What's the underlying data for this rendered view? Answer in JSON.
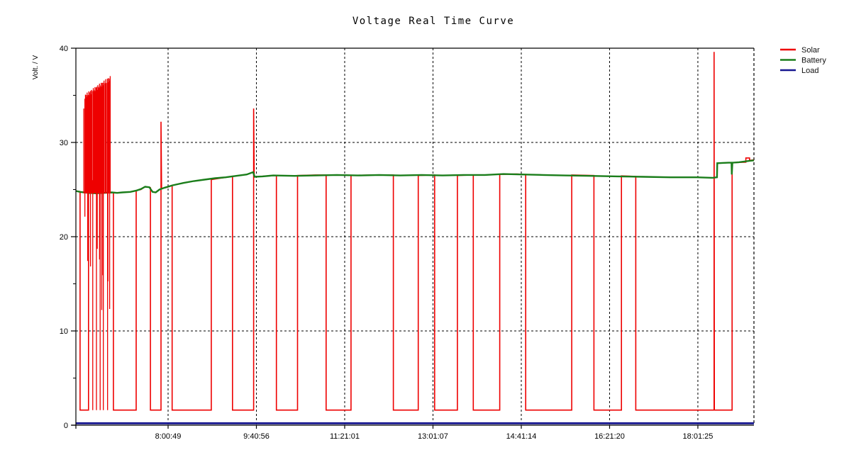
{
  "title": "Voltage Real Time Curve",
  "y_axis": {
    "label": "Volt. / V",
    "tick_labels": [
      "0",
      "10",
      "20",
      "30",
      "40"
    ],
    "tick_values": [
      0,
      10,
      20,
      30,
      40
    ],
    "minor_tick_values": [
      5,
      15,
      25,
      35
    ]
  },
  "x_axis": {
    "tick_labels": [
      "8:00:49",
      "9:40:56",
      "11:21:01",
      "13:01:07",
      "14:41:14",
      "16:21:20",
      "18:01:25"
    ],
    "tick_hours": [
      8.0136,
      9.6822,
      11.3503,
      13.0186,
      14.6872,
      16.3556,
      18.0236
    ]
  },
  "legend": {
    "items": [
      {
        "label": "Solar",
        "color": "#ee0000"
      },
      {
        "label": "Battery",
        "color": "#1a7d1a"
      },
      {
        "label": "Load",
        "color": "#16168f"
      }
    ]
  },
  "chart_data": {
    "type": "line",
    "title": "Voltage Real Time Curve",
    "xlabel": "",
    "ylabel": "Volt. / V",
    "ylim": [
      0,
      40
    ],
    "xlim_hours": [
      6.2715,
      19.083
    ],
    "grid": "dashed",
    "legend_position": "top-right-outside",
    "x_tick_hours": [
      8.0136,
      9.6822,
      11.3503,
      13.0186,
      14.6872,
      16.3556,
      18.0236
    ],
    "x_tick_labels": [
      "8:00:49",
      "9:40:56",
      "11:21:01",
      "13:01:07",
      "14:41:14",
      "16:21:20",
      "18:01:25"
    ],
    "series": [
      {
        "name": "Solar",
        "color": "#ee0000",
        "width": 1.6,
        "points": [
          [
            6.2715,
            24.85
          ],
          [
            6.35,
            24.8
          ],
          [
            6.35,
            1.6
          ],
          [
            6.51,
            1.6
          ],
          [
            6.51,
            24.6
          ],
          [
            6.93,
            24.65
          ],
          [
            6.98,
            24.7
          ],
          [
            6.98,
            1.6
          ],
          [
            7.41,
            1.6
          ],
          [
            7.41,
            24.9
          ],
          [
            7.5,
            25.0
          ],
          [
            7.58,
            25.3
          ],
          [
            7.65,
            25.25
          ],
          [
            7.68,
            25.2
          ],
          [
            7.68,
            1.6
          ],
          [
            7.88,
            1.6
          ],
          [
            7.88,
            32.2
          ],
          [
            7.89,
            25.1
          ],
          [
            8.0,
            25.25
          ],
          [
            8.09,
            25.45
          ],
          [
            8.09,
            1.6
          ],
          [
            8.83,
            1.6
          ],
          [
            8.83,
            26.05
          ],
          [
            9.0,
            26.2
          ],
          [
            9.23,
            26.4
          ],
          [
            9.23,
            1.6
          ],
          [
            9.63,
            1.6
          ],
          [
            9.63,
            33.6
          ],
          [
            9.64,
            26.35
          ],
          [
            9.9,
            26.45
          ],
          [
            10.06,
            26.5
          ],
          [
            10.06,
            1.6
          ],
          [
            10.46,
            1.6
          ],
          [
            10.46,
            26.5
          ],
          [
            10.8,
            26.55
          ],
          [
            11.0,
            26.55
          ],
          [
            11.0,
            1.6
          ],
          [
            11.47,
            1.6
          ],
          [
            11.47,
            26.5
          ],
          [
            11.9,
            26.55
          ],
          [
            12.27,
            26.55
          ],
          [
            12.27,
            1.6
          ],
          [
            12.74,
            1.6
          ],
          [
            12.74,
            26.5
          ],
          [
            13.05,
            26.55
          ],
          [
            13.05,
            1.6
          ],
          [
            13.48,
            1.6
          ],
          [
            13.48,
            26.5
          ],
          [
            13.78,
            26.55
          ],
          [
            13.78,
            1.6
          ],
          [
            14.28,
            1.6
          ],
          [
            14.28,
            26.6
          ],
          [
            14.6,
            26.65
          ],
          [
            14.77,
            26.6
          ],
          [
            14.77,
            1.6
          ],
          [
            15.64,
            1.6
          ],
          [
            15.64,
            26.55
          ],
          [
            16.06,
            26.5
          ],
          [
            16.06,
            1.6
          ],
          [
            16.58,
            1.6
          ],
          [
            16.58,
            26.45
          ],
          [
            16.85,
            26.4
          ],
          [
            16.85,
            1.6
          ],
          [
            18.33,
            1.6
          ],
          [
            18.33,
            39.6
          ],
          [
            18.335,
            1.6
          ],
          [
            18.67,
            1.6
          ],
          [
            18.67,
            27.85
          ],
          [
            18.93,
            27.9
          ],
          [
            18.93,
            28.35
          ],
          [
            19.0,
            28.35
          ],
          [
            19.0,
            28.1
          ],
          [
            19.083,
            28.15
          ]
        ]
      },
      {
        "name": "Battery",
        "color": "#1a7d1a",
        "width": 2.4,
        "points": [
          [
            6.2715,
            24.85
          ],
          [
            6.35,
            24.75
          ],
          [
            6.5,
            24.65
          ],
          [
            6.65,
            24.6
          ],
          [
            6.8,
            24.65
          ],
          [
            6.95,
            24.7
          ],
          [
            7.05,
            24.65
          ],
          [
            7.15,
            24.7
          ],
          [
            7.3,
            24.75
          ],
          [
            7.42,
            24.9
          ],
          [
            7.5,
            25.05
          ],
          [
            7.58,
            25.3
          ],
          [
            7.66,
            25.25
          ],
          [
            7.72,
            24.75
          ],
          [
            7.78,
            24.7
          ],
          [
            7.85,
            25.0
          ],
          [
            7.95,
            25.2
          ],
          [
            8.1,
            25.45
          ],
          [
            8.3,
            25.7
          ],
          [
            8.5,
            25.9
          ],
          [
            8.7,
            26.05
          ],
          [
            8.9,
            26.2
          ],
          [
            9.1,
            26.3
          ],
          [
            9.3,
            26.45
          ],
          [
            9.5,
            26.6
          ],
          [
            9.62,
            26.85
          ],
          [
            9.65,
            26.35
          ],
          [
            9.8,
            26.4
          ],
          [
            10.0,
            26.5
          ],
          [
            10.4,
            26.45
          ],
          [
            10.8,
            26.5
          ],
          [
            11.2,
            26.55
          ],
          [
            11.6,
            26.5
          ],
          [
            12.0,
            26.55
          ],
          [
            12.4,
            26.5
          ],
          [
            12.8,
            26.55
          ],
          [
            13.2,
            26.5
          ],
          [
            13.6,
            26.55
          ],
          [
            14.0,
            26.55
          ],
          [
            14.35,
            26.65
          ],
          [
            14.7,
            26.6
          ],
          [
            15.1,
            26.55
          ],
          [
            15.5,
            26.5
          ],
          [
            16.0,
            26.45
          ],
          [
            16.5,
            26.4
          ],
          [
            17.0,
            26.35
          ],
          [
            17.5,
            26.3
          ],
          [
            18.0,
            26.3
          ],
          [
            18.3,
            26.25
          ],
          [
            18.385,
            26.3
          ],
          [
            18.39,
            27.8
          ],
          [
            18.6,
            27.85
          ],
          [
            18.66,
            27.85
          ],
          [
            18.665,
            26.6
          ],
          [
            18.675,
            27.85
          ],
          [
            18.8,
            27.9
          ],
          [
            19.0,
            28.05
          ],
          [
            19.083,
            28.1
          ]
        ]
      },
      {
        "name": "Load",
        "color": "#16168f",
        "width": 2.8,
        "points": [
          [
            6.2715,
            0.2
          ],
          [
            19.083,
            0.2
          ]
        ]
      }
    ],
    "solar_pwm_block": {
      "t_start": 6.42,
      "t_end": 6.92,
      "v_base": 24.6,
      "v_top_start": 34.8,
      "v_top_end": 36.8,
      "deep_drop_hours": [
        6.59,
        6.66,
        6.73,
        6.79,
        6.87
      ],
      "deep_drop_low": 1.6
    }
  }
}
